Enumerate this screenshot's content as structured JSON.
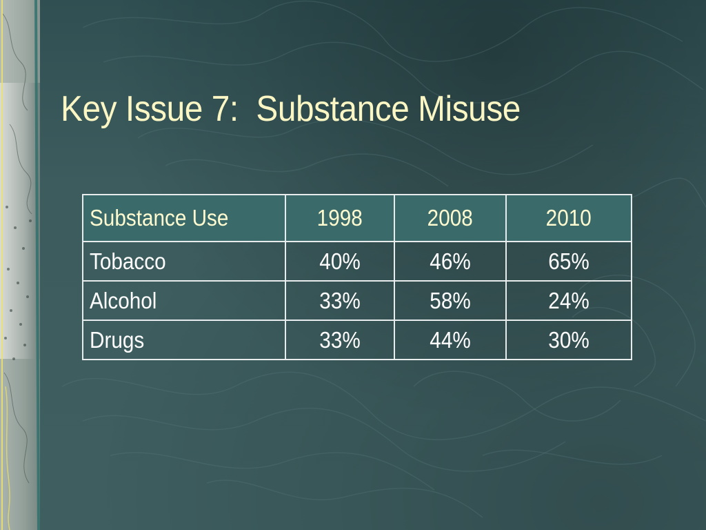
{
  "slide": {
    "title": "Key Issue 7:  Substance Misuse"
  },
  "table": {
    "headers": [
      "Substance Use",
      "1998",
      "2008",
      "2010"
    ],
    "rows": [
      [
        "Tobacco",
        "40%",
        "46%",
        "65%"
      ],
      [
        "Alcohol",
        "33%",
        "58%",
        "24%"
      ],
      [
        "Drugs",
        "33%",
        "44%",
        "30%"
      ]
    ]
  },
  "colors": {
    "background": "#3b5a5c",
    "title_text": "#fbf6c4",
    "header_fill": "#3a6a6a",
    "cell_text": "#ffffff",
    "border": "#e9ecec"
  }
}
